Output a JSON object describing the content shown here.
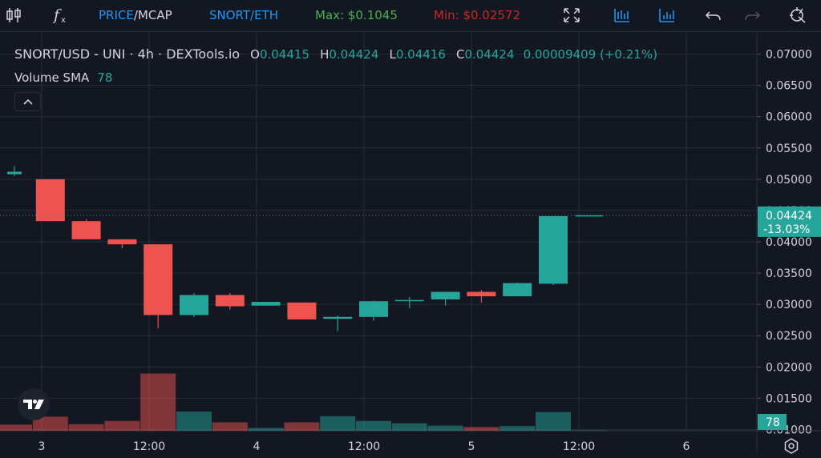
{
  "toolbar": {
    "price_label": "PRICE",
    "separator": "/",
    "mcap_label": "MCAP",
    "pair_label": "SNORT/ETH",
    "max_label": "Max: $0.1045",
    "min_label": "Min: $0.02572",
    "icons": [
      "candles-icon",
      "function-icon",
      "fullscreen-icon",
      "bar-chart-icon",
      "column-chart-icon",
      "undo-icon",
      "redo-icon",
      "crosshair-icon"
    ]
  },
  "legend": {
    "title": "SNORT/USD - UNI · 4h · DEXTools.io",
    "o_label": "O",
    "o_value": "0.04415",
    "h_label": "H",
    "h_value": "0.04424",
    "l_label": "L",
    "l_value": "0.04416",
    "c_label": "C",
    "c_value": "0.04424",
    "change": "0.00009409 (+0.21%)",
    "volume_label": "Volume SMA",
    "volume_value": "78"
  },
  "colors": {
    "background": "#131722",
    "up": "#26a69a",
    "down": "#ef5350",
    "grid": "#2a2e39",
    "max_green": "#4caf50",
    "min_red": "#c62828",
    "toolbar_blue": "#2196f3"
  },
  "chart_data": {
    "type": "candlestick",
    "y_axis_ticks": [
      "0.07000",
      "0.06500",
      "0.06000",
      "0.05500",
      "0.05000",
      "0.04500",
      "0.04000",
      "0.03500",
      "0.03000",
      "0.02500",
      "0.02000",
      "0.01500",
      "0.01000"
    ],
    "ylim": [
      0.0098,
      0.0734
    ],
    "x_axis_ticks": [
      "3",
      "12:00",
      "4",
      "12:00",
      "5",
      "12:00",
      "6"
    ],
    "price_label": "0.04424",
    "price_change": "-13.03%",
    "last_price": 0.04424,
    "volume_label": "78",
    "candles": [
      {
        "open": 0.0508,
        "high": 0.0521,
        "low": 0.0505,
        "close": 0.0512
      },
      {
        "open": 0.05,
        "high": 0.05,
        "low": 0.0433,
        "close": 0.0433
      },
      {
        "open": 0.0433,
        "high": 0.0436,
        "low": 0.0404,
        "close": 0.0404
      },
      {
        "open": 0.0404,
        "high": 0.0404,
        "low": 0.039,
        "close": 0.0396
      },
      {
        "open": 0.0396,
        "high": 0.0396,
        "low": 0.0262,
        "close": 0.0283
      },
      {
        "open": 0.0283,
        "high": 0.0318,
        "low": 0.028,
        "close": 0.0315
      },
      {
        "open": 0.0315,
        "high": 0.0318,
        "low": 0.0292,
        "close": 0.0297
      },
      {
        "open": 0.0298,
        "high": 0.0304,
        "low": 0.0298,
        "close": 0.0304
      },
      {
        "open": 0.0303,
        "high": 0.0303,
        "low": 0.0276,
        "close": 0.0276
      },
      {
        "open": 0.0277,
        "high": 0.0282,
        "low": 0.0257,
        "close": 0.028
      },
      {
        "open": 0.028,
        "high": 0.0306,
        "low": 0.0274,
        "close": 0.0305
      },
      {
        "open": 0.0305,
        "high": 0.0312,
        "low": 0.0294,
        "close": 0.0307
      },
      {
        "open": 0.0308,
        "high": 0.032,
        "low": 0.0298,
        "close": 0.032
      },
      {
        "open": 0.032,
        "high": 0.0323,
        "low": 0.0303,
        "close": 0.0313
      },
      {
        "open": 0.0313,
        "high": 0.0335,
        "low": 0.0313,
        "close": 0.0334
      },
      {
        "open": 0.0333,
        "high": 0.0441,
        "low": 0.0331,
        "close": 0.0441
      },
      {
        "open": 0.04415,
        "high": 0.04424,
        "low": 0.04416,
        "close": 0.04424
      }
    ],
    "volume_scale_max": 140,
    "volumes": [
      {
        "value": 13,
        "direction": "down"
      },
      {
        "value": 30,
        "direction": "down"
      },
      {
        "value": 14,
        "direction": "down"
      },
      {
        "value": 21,
        "direction": "down"
      },
      {
        "value": 122,
        "direction": "down"
      },
      {
        "value": 41,
        "direction": "up"
      },
      {
        "value": 18,
        "direction": "down"
      },
      {
        "value": 6,
        "direction": "up"
      },
      {
        "value": 18,
        "direction": "down"
      },
      {
        "value": 31,
        "direction": "up"
      },
      {
        "value": 21,
        "direction": "up"
      },
      {
        "value": 16,
        "direction": "up"
      },
      {
        "value": 11,
        "direction": "up"
      },
      {
        "value": 8,
        "direction": "down"
      },
      {
        "value": 10,
        "direction": "up"
      },
      {
        "value": 40,
        "direction": "up"
      },
      {
        "value": 1,
        "direction": "up"
      }
    ]
  }
}
